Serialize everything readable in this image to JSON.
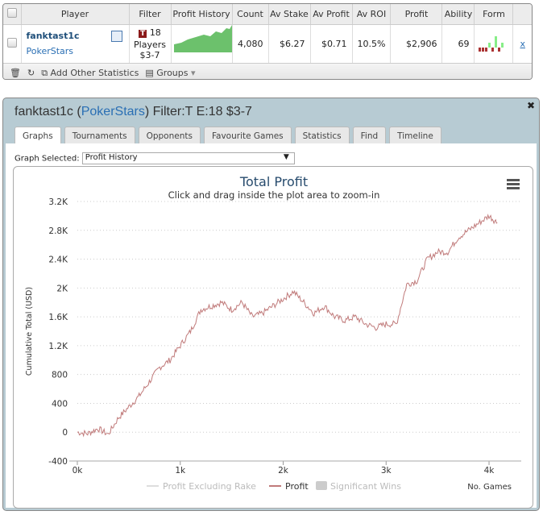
{
  "table": {
    "headers": [
      "Player",
      "Filter",
      "Profit History",
      "Count",
      "Av Stake",
      "Av Profit",
      "Av ROI",
      "Profit",
      "Ability",
      "Form"
    ],
    "row": {
      "player": "fanktast1c",
      "site": "PokerStars",
      "filter_badge": "T",
      "filter_line1": "18",
      "filter_line2": "Players",
      "filter_line3": "$3-7",
      "count": "4,080",
      "av_stake": "$6.27",
      "av_profit": "$0.71",
      "av_roi": "10.5%",
      "profit": "$2,906",
      "ability": "69",
      "remove": "x"
    },
    "footer": {
      "add_stats": "Add Other Statistics",
      "groups": "Groups"
    }
  },
  "panel": {
    "player": "fanktast1c",
    "site": "PokerStars",
    "filter": "Filter:T E:18 $3-7",
    "open_paren": "(",
    "close_paren": ")",
    "tabs": [
      "Graphs",
      "Tournaments",
      "Opponents",
      "Favourite Games",
      "Statistics",
      "Find",
      "Timeline"
    ],
    "graph_label": "Graph Selected:",
    "graph_value": "Profit History"
  },
  "chart_data": {
    "type": "line",
    "title": "Total Profit",
    "subtitle": "Click and drag inside the plot area to zoom-in",
    "ylabel": "Cumulative Total (USD)",
    "xlabel": "No. Games",
    "xlim": [
      0,
      4150
    ],
    "ylim": [
      -400,
      3200
    ],
    "yticks": [
      -400,
      0,
      400,
      800,
      "1.2K",
      "1.6K",
      "2K",
      "2.4K",
      "2.8K",
      "3.2K"
    ],
    "ytick_labels": [
      "-400",
      "0",
      "400",
      "800",
      "1.2K",
      "1.6K",
      "2K",
      "2.4K",
      "2.8K",
      "3.2K"
    ],
    "xtick_labels": [
      "0k",
      "1k",
      "2k",
      "3k",
      "4k"
    ],
    "legend": [
      "Profit Excluding Rake",
      "Profit",
      "Significant Wins"
    ],
    "series": [
      {
        "name": "Profit",
        "color": "#c07a7a",
        "x": [
          0,
          100,
          200,
          300,
          400,
          500,
          600,
          700,
          800,
          900,
          1000,
          1100,
          1200,
          1300,
          1400,
          1500,
          1600,
          1700,
          1800,
          1900,
          2000,
          2100,
          2200,
          2300,
          2400,
          2500,
          2600,
          2700,
          2800,
          2900,
          3000,
          3100,
          3200,
          3300,
          3400,
          3500,
          3600,
          3700,
          3800,
          3900,
          4000,
          4080
        ],
        "y": [
          0,
          -20,
          50,
          -30,
          200,
          350,
          500,
          700,
          900,
          1000,
          1200,
          1400,
          1700,
          1750,
          1800,
          1700,
          1800,
          1600,
          1650,
          1750,
          1850,
          1950,
          1800,
          1650,
          1750,
          1600,
          1550,
          1600,
          1500,
          1450,
          1500,
          1500,
          2050,
          2100,
          2400,
          2500,
          2500,
          2700,
          2800,
          2900,
          3000,
          2906
        ]
      }
    ]
  }
}
